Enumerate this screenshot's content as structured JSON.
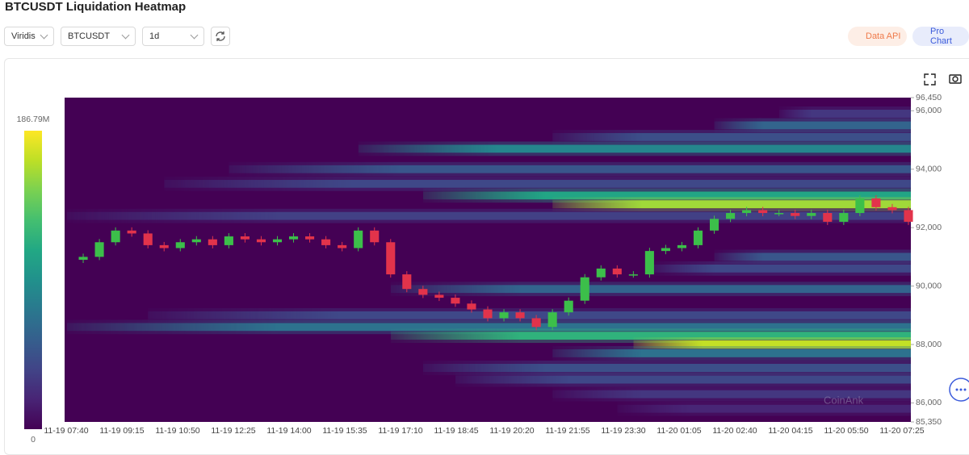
{
  "header": {
    "title": "BTCUSDT Liquidation Heatmap"
  },
  "controls": {
    "palette": "Viridis",
    "symbol": "BTCUSDT",
    "range": "1d",
    "data_api": "Data API",
    "pro_chart": "Pro Chart"
  },
  "chart_data": {
    "type": "heatmap",
    "watermark": "CoinAnk",
    "ylim": [
      85350,
      96450
    ],
    "yticks": [
      {
        "value": 96450,
        "label": "96,450"
      },
      {
        "value": 96000,
        "label": "96,000"
      },
      {
        "value": 94000,
        "label": "94,000"
      },
      {
        "value": 92000,
        "label": "92,000"
      },
      {
        "value": 90000,
        "label": "90,000"
      },
      {
        "value": 88000,
        "label": "88,000"
      },
      {
        "value": 86000,
        "label": "86,000"
      },
      {
        "value": 85350,
        "label": "85,350"
      }
    ],
    "xtick_labels": [
      "11-19 07:40",
      "11-19 09:15",
      "11-19 10:50",
      "11-19 12:25",
      "11-19 14:00",
      "11-19 15:35",
      "11-19 17:10",
      "11-19 18:45",
      "11-19 20:20",
      "11-19 21:55",
      "11-19 23:30",
      "11-20 01:05",
      "11-20 02:40",
      "11-20 04:15",
      "11-20 05:50",
      "11-20 07:25"
    ],
    "colorbar": {
      "lim": [
        0,
        186790000
      ],
      "ticks": [
        {
          "value": 186790000,
          "label": "186.79M"
        },
        0
      ]
    },
    "background_color": "#440154",
    "up_color": "#3cbf4a",
    "down_color": "#e2334b",
    "price": [
      90900,
      91000,
      91500,
      91900,
      91800,
      91400,
      91300,
      91500,
      91600,
      91400,
      91700,
      91600,
      91500,
      91600,
      91700,
      91600,
      91400,
      91300,
      91900,
      91500,
      90400,
      89900,
      89700,
      89600,
      89400,
      89200,
      88900,
      89100,
      88900,
      88600,
      89100,
      89500,
      90300,
      90600,
      90400,
      90400,
      91200,
      91300,
      91400,
      91900,
      92300,
      92500,
      92600,
      92500,
      92500,
      92400,
      92500,
      92200,
      92500,
      93000,
      92700,
      92600,
      92200
    ],
    "levels": [
      {
        "price": 95900,
        "value": 30000000,
        "start": 44
      },
      {
        "price": 95500,
        "value": 60000000,
        "start": 40
      },
      {
        "price": 95100,
        "value": 45000000,
        "start": 30
      },
      {
        "price": 94700,
        "value": 85000000,
        "start": 18
      },
      {
        "price": 94000,
        "value": 50000000,
        "start": 10
      },
      {
        "price": 93500,
        "value": 40000000,
        "start": 6
      },
      {
        "price": 93100,
        "value": 110000000,
        "start": 22
      },
      {
        "price": 92800,
        "value": 160000000,
        "start": 30
      },
      {
        "price": 92400,
        "value": 35000000,
        "start": 0
      },
      {
        "price": 91000,
        "value": 50000000,
        "start": 40
      },
      {
        "price": 90600,
        "value": 40000000,
        "start": 36
      },
      {
        "price": 89900,
        "value": 60000000,
        "start": 20
      },
      {
        "price": 89000,
        "value": 40000000,
        "start": 5
      },
      {
        "price": 88600,
        "value": 70000000,
        "start": 0
      },
      {
        "price": 88300,
        "value": 120000000,
        "start": 20
      },
      {
        "price": 88000,
        "value": 170000000,
        "start": 35
      },
      {
        "price": 87700,
        "value": 70000000,
        "start": 30
      },
      {
        "price": 87200,
        "value": 45000000,
        "start": 22
      },
      {
        "price": 86800,
        "value": 40000000,
        "start": 24
      },
      {
        "price": 86300,
        "value": 30000000,
        "start": 30
      },
      {
        "price": 85800,
        "value": 20000000,
        "start": 34
      }
    ]
  }
}
